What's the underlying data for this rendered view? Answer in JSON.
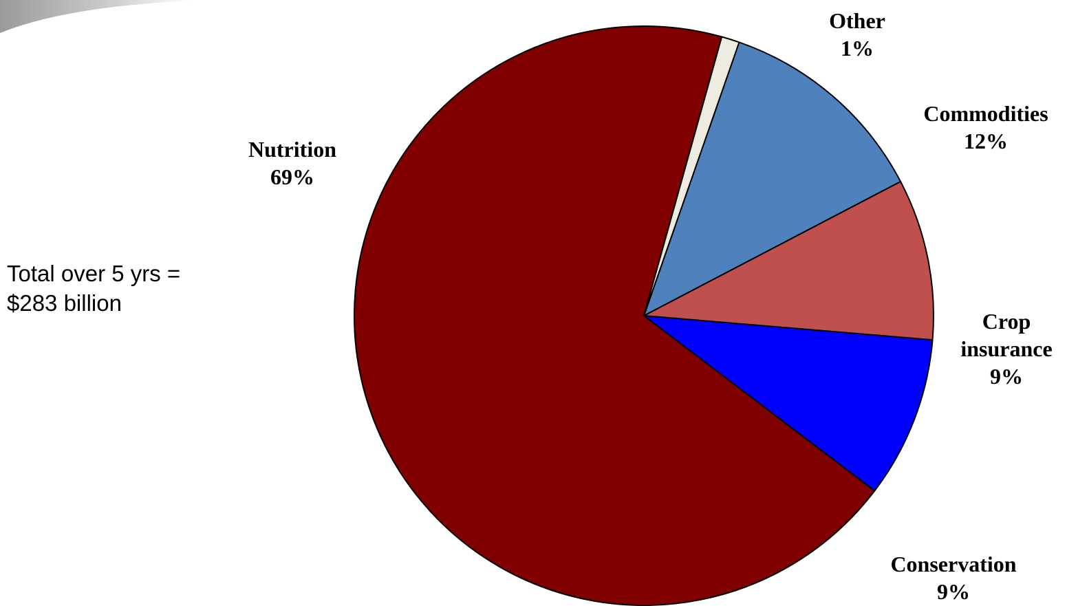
{
  "chart_data": {
    "type": "pie",
    "title": "",
    "slices": [
      {
        "label": "Commodities",
        "value": 12,
        "display": "12%",
        "color": "#4F81BD"
      },
      {
        "label": "Crop insurance",
        "value": 9,
        "display": "9%",
        "color": "#C0504D"
      },
      {
        "label": "Conservation",
        "value": 9,
        "display": "9%",
        "color": "#0000FF"
      },
      {
        "label": "Nutrition",
        "value": 69,
        "display": "69%",
        "color": "#800000"
      },
      {
        "label": "Other",
        "value": 1,
        "display": "1%",
        "color": "#EEECE1"
      }
    ],
    "legend": "none",
    "annotation": {
      "line1": "Total over 5 yrs =",
      "line2": "$283 billion"
    }
  },
  "labels": {
    "other": {
      "name": "Other",
      "pct": "1%"
    },
    "commodities": {
      "name": "Commodities",
      "pct": "12%"
    },
    "crop": {
      "name1": "Crop",
      "name2": "insurance",
      "pct": "9%"
    },
    "conservation": {
      "name": "Conservation",
      "pct": "9%"
    },
    "nutrition": {
      "name": "Nutrition",
      "pct": "69%"
    }
  }
}
